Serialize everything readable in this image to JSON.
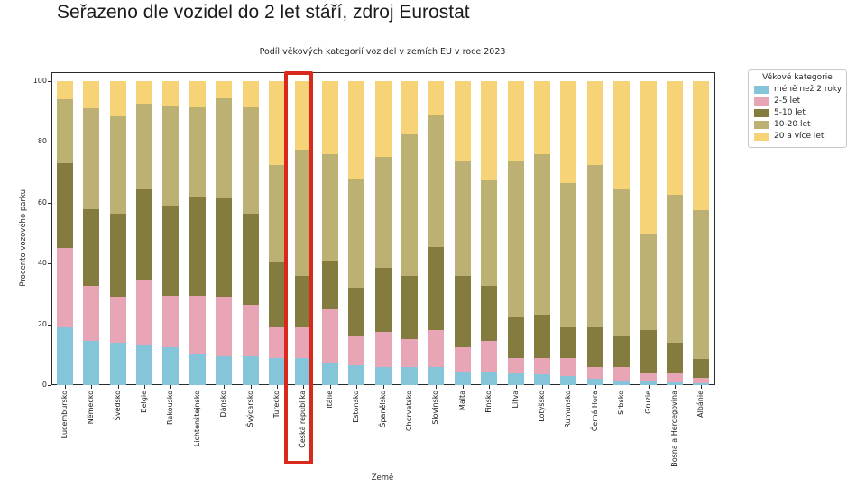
{
  "heading": "Seřazeno dle vozidel do 2 let stáří, zdroj Eurostat",
  "chart_data": {
    "type": "bar",
    "stacked": true,
    "title": "Podíl věkových kategorií vozidel v zemích EU v roce 2023",
    "xlabel": "Země",
    "ylabel": "Procento vozového parku",
    "ylim": [
      0,
      100
    ],
    "yticks": [
      0,
      20,
      40,
      60,
      80,
      100
    ],
    "grid": false,
    "legend_title": "Věkové kategorie",
    "legend_position": "outside-upper-right",
    "highlighted_category": "Česká republika",
    "highlight_color": "#d8291c",
    "categories": [
      "Lucembursko",
      "Německo",
      "Švédsko",
      "Belgie",
      "Rakousko",
      "Lichtenštejnsko",
      "Dánsko",
      "Švýcarsko",
      "Turecko",
      "Česká republika",
      "Itálie",
      "Estonsko",
      "Španělsko",
      "Chorvatsko",
      "Slovinsko",
      "Malta",
      "Finsko",
      "Litva",
      "Lotyšsko",
      "Rumunsko",
      "Černá Hora",
      "Srbsko",
      "Gruzie",
      "Bosna a Hercegovina",
      "Albánie"
    ],
    "series": [
      {
        "name": "méně než 2 roky",
        "color": "#85c5da",
        "values": [
          19,
          14.5,
          14,
          13.5,
          12.5,
          10,
          9.5,
          9.5,
          9,
          9,
          7.5,
          6.5,
          6,
          6,
          6,
          4.5,
          4.5,
          4,
          3.5,
          3,
          2,
          1.5,
          1.5,
          1,
          0.5
        ]
      },
      {
        "name": "2-5 let",
        "color": "#e8a5b5",
        "values": [
          26,
          18,
          15,
          21,
          17,
          19.5,
          19.5,
          17,
          10,
          10,
          17.5,
          9.5,
          11.5,
          9,
          12,
          8,
          10,
          5,
          5.5,
          6,
          4,
          4.5,
          2.5,
          3,
          2
        ]
      },
      {
        "name": "5-10 let",
        "color": "#847c3e",
        "values": [
          28,
          25.5,
          27.5,
          30,
          29.5,
          32.5,
          32.5,
          30,
          21.5,
          17,
          16,
          16,
          21,
          21,
          27.5,
          23.5,
          18,
          13.5,
          14,
          10,
          13,
          10,
          14,
          10,
          6
        ]
      },
      {
        "name": "10-20 let",
        "color": "#bcb173",
        "values": [
          21,
          33,
          32,
          28,
          33,
          29.5,
          33,
          35,
          32,
          41.5,
          35,
          36,
          36.5,
          46.5,
          43.5,
          37.5,
          35,
          51.5,
          53,
          47.5,
          53.5,
          48.5,
          31.5,
          48.5,
          49
        ]
      },
      {
        "name": "20 a více let",
        "color": "#f5d376",
        "values": [
          6,
          9,
          11.5,
          7.5,
          8,
          8.5,
          5.5,
          8.5,
          27.5,
          22.5,
          24,
          32,
          25,
          17.5,
          11,
          26.5,
          32.5,
          26,
          24,
          33.5,
          27.5,
          35.5,
          50.5,
          37.5,
          42.5
        ]
      }
    ]
  }
}
